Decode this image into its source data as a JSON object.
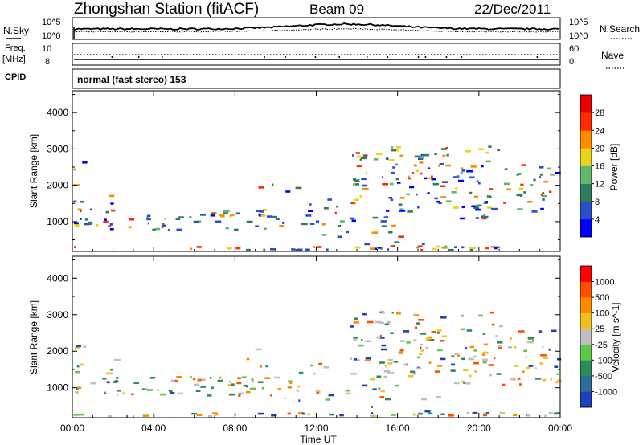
{
  "header": {
    "station": "Zhongshan Station (fitACF)",
    "beam": "Beam 09",
    "date": "22/Dec/2011"
  },
  "panel_labels": {
    "nsky": "N.Sky",
    "nsky_tick_top": "10^5",
    "nsky_tick_bottom": "10^0",
    "nsearch": "N.Search",
    "nsearch_tick_top": "10^5",
    "nsearch_tick_bottom": "10^0",
    "freq_line1": "Freq.",
    "freq_line2": "[MHz]",
    "freq_tick_top": "10",
    "freq_tick_bottom": "8",
    "nave": "Nave",
    "nave_tick_top": "60",
    "nave_tick_bottom": "0",
    "cpid": "CPID",
    "cpid_text": "normal (fast stereo) 153"
  },
  "chart_data": [
    {
      "type": "heatmap",
      "name": "power",
      "ylabel": "Slant Range [km]",
      "yticks": [
        "1000",
        "2000",
        "3000",
        "4000"
      ],
      "ylim": [
        180,
        4600
      ],
      "colorbar_label": "Power [dB]",
      "colorbar_ticks": [
        "4",
        "8",
        "12",
        "16",
        "20",
        "24",
        "28"
      ],
      "colorbar_colors": [
        "#0000ff",
        "#2a4fc8",
        "#2e7d5a",
        "#5fb86b",
        "#e8d21c",
        "#ff8c00",
        "#ff2a00",
        "#e80000"
      ],
      "clim": [
        0,
        30
      ]
    },
    {
      "type": "heatmap",
      "name": "velocity",
      "ylabel": "Slant Range [km]",
      "yticks": [
        "1000",
        "2000",
        "3000",
        "4000"
      ],
      "ylim": [
        180,
        4600
      ],
      "colorbar_label": "Velocity [m s^-1]",
      "colorbar_ticks": [
        "1000",
        "500",
        "100",
        "25",
        "-25",
        "-100",
        "-500",
        "-1000"
      ],
      "colorbar_colors": [
        "#1f3fbf",
        "#2e6b9e",
        "#2e8b57",
        "#5fc84a",
        "#c0c0c0",
        "#f0c020",
        "#ff8c00",
        "#ff5000",
        "#ff0000"
      ],
      "clim": [
        -1000,
        1000
      ]
    }
  ],
  "xaxis": {
    "label": "Time UT",
    "ticks": [
      "00:00",
      "04:00",
      "08:00",
      "12:00",
      "16:00",
      "20:00",
      "00:00"
    ]
  }
}
